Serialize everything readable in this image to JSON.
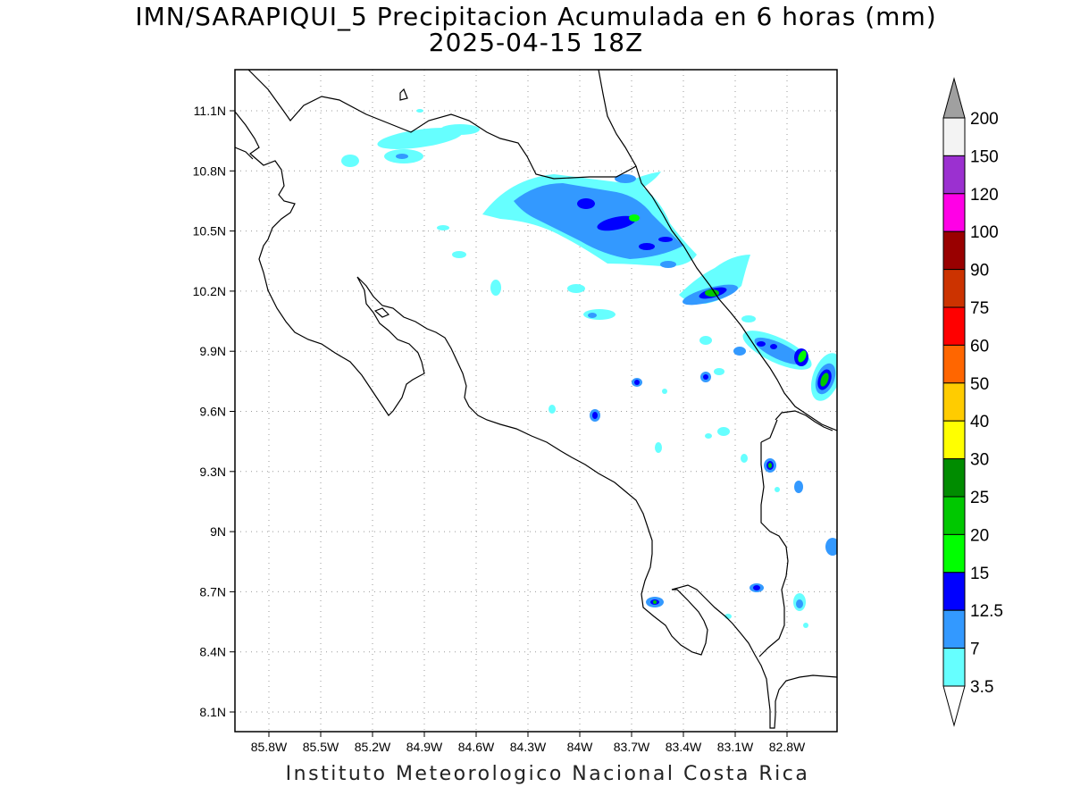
{
  "title": {
    "line1": "IMN/SARAPIQUI_5 Precipitacion Acumulada en 6 horas (mm)",
    "line2": "2025-04-15 18Z"
  },
  "credit": "Instituto Meteorologico Nacional Costa Rica",
  "map": {
    "lat_ticks": [
      "11.1N",
      "10.8N",
      "10.5N",
      "10.2N",
      "9.9N",
      "9.6N",
      "9.3N",
      "9N",
      "8.7N",
      "8.4N",
      "8.1N"
    ],
    "lon_ticks": [
      "85.8W",
      "85.5W",
      "85.2W",
      "84.9W",
      "84.6W",
      "84.3W",
      "84W",
      "83.7W",
      "83.4W",
      "83.1W",
      "82.8W"
    ],
    "lat_range": [
      8.0,
      11.3
    ],
    "lon_range": [
      -85.97,
      -82.97
    ],
    "grid": true
  },
  "legend": {
    "labels": [
      "200",
      "150",
      "120",
      "100",
      "90",
      "75",
      "60",
      "50",
      "40",
      "30",
      "25",
      "20",
      "15",
      "12.5",
      "7",
      "3.5"
    ],
    "colors": [
      "#f3f3f3",
      "#9b30d0",
      "#ff00e6",
      "#990000",
      "#cc3300",
      "#ff0000",
      "#ff6600",
      "#ffcc00",
      "#ffff00",
      "#008c00",
      "#00c800",
      "#00ff00",
      "#0000ff",
      "#3399ff",
      "#66ffff"
    ],
    "over_color": "#a0a0a0",
    "under_color": "#ffffff"
  },
  "colors": {
    "light_cyan": "#66ffff",
    "light_blue": "#3399ff",
    "blue": "#0000ff",
    "bright_green": "#00ff00",
    "green": "#00c800"
  }
}
